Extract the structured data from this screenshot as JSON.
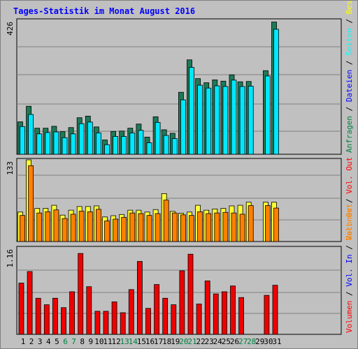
{
  "chart_data": {
    "type": "bar",
    "title": "Tages-Statistik im Monat August 2016",
    "categories": [
      "1",
      "2",
      "3",
      "4",
      "5",
      "6",
      "7",
      "8",
      "9",
      "10",
      "11",
      "12",
      "13",
      "14",
      "15",
      "16",
      "17",
      "18",
      "19",
      "20",
      "21",
      "22",
      "23",
      "24",
      "25",
      "26",
      "27",
      "28",
      "29",
      "30",
      "31"
    ],
    "weekend_days": [
      "6",
      "7",
      "13",
      "14",
      "20",
      "21",
      "27",
      "28"
    ],
    "panels": [
      {
        "id": "top",
        "ymax_label": "426",
        "ymax": 426,
        "legend": [
          {
            "text": "Anfragen",
            "color": "#008040"
          },
          {
            "text": " / ",
            "color": "#000000"
          },
          {
            "text": "Dateien",
            "color": "#0000ff"
          },
          {
            "text": " / ",
            "color": "#000000"
          },
          {
            "text": "Seiten",
            "color": "#00ffff"
          },
          {
            "text": " / ",
            "color": "#000000"
          },
          {
            "text": "Besuche",
            "color": "#ffff00"
          }
        ],
        "series": [
          {
            "name": "Anfragen",
            "color": "#1d7a57",
            "values": [
              102,
              151,
              82,
              82,
              88,
              71,
              84,
              115,
              120,
              86,
              45,
              72,
              73,
              82,
              95,
              54,
              118,
              77,
              66,
              195,
              297,
              238,
              225,
              234,
              230,
              250,
              228,
              229,
              0,
              263,
              416
            ]
          },
          {
            "name": "Dateien",
            "color": "#00e8ff",
            "values": [
              96,
              134,
              73,
              77,
              79,
              61,
              73,
              105,
              110,
              76,
              39,
              65,
              65,
              76,
              84,
              45,
              109,
              68,
              58,
              180,
              282,
              226,
              217,
              224,
              222,
              242,
              222,
              223,
              0,
              255,
              402
            ]
          }
        ]
      },
      {
        "id": "middle",
        "ymax_label": "133",
        "ymax": 133,
        "legend": [
          {
            "text": "Rechner",
            "color": "#ff8000"
          },
          {
            "text": " / ",
            "color": "#000000"
          },
          {
            "text": "Vol. Out",
            "color": "#ff0000"
          }
        ],
        "series": [
          {
            "name": "Besuche",
            "color": "#ffff33",
            "values": [
              48,
              133,
              54,
              54,
              59,
              43,
              51,
              57,
              57,
              58,
              40,
              42,
              44,
              51,
              51,
              48,
              52,
              78,
              49,
              46,
              48,
              59,
              51,
              53,
              54,
              58,
              59,
              64,
              0,
              64,
              64
            ]
          },
          {
            "name": "Rechner",
            "color": "#ff8000",
            "values": [
              47,
              128,
              51,
              53,
              56,
              42,
              49,
              54,
              53,
              57,
              38,
              41,
              44,
              51,
              50,
              47,
              50,
              72,
              51,
              48,
              47,
              53,
              50,
              51,
              52,
              51,
              49,
              63,
              0,
              63,
              59
            ]
          }
        ]
      },
      {
        "id": "bottom",
        "ymax_label": "1.16",
        "ymax": 1.16,
        "legend": [
          {
            "text": "Volumen",
            "color": "#ff0000"
          },
          {
            "text": " / ",
            "color": "#000000"
          },
          {
            "text": "Vol. In",
            "color": "#0000ff"
          },
          {
            "text": " / ",
            "color": "#000000"
          },
          {
            "text": "Vol. Out",
            "color": "#ff8000"
          }
        ],
        "series": [
          {
            "name": "Volumen",
            "color": "#ee0000",
            "values": [
              0.71,
              0.87,
              0.5,
              0.41,
              0.5,
              0.37,
              0.59,
              1.12,
              0.66,
              0.32,
              0.32,
              0.45,
              0.3,
              0.62,
              1.01,
              0.36,
              0.69,
              0.5,
              0.41,
              0.88,
              1.11,
              0.42,
              0.74,
              0.56,
              0.59,
              0.67,
              0.51,
              0,
              0,
              0.54,
              0.68
            ]
          }
        ]
      }
    ]
  }
}
